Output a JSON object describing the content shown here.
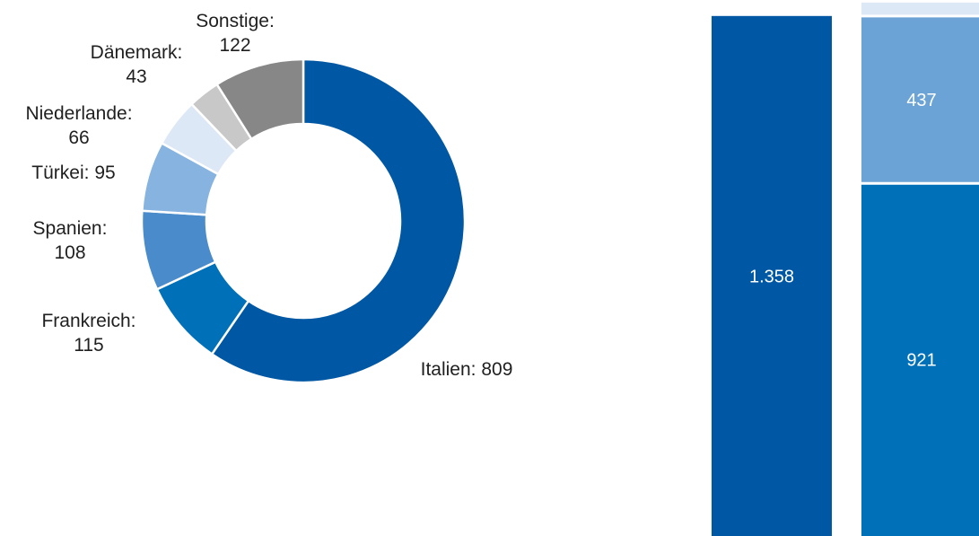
{
  "chart_data": [
    {
      "type": "pie",
      "donut": true,
      "slices": [
        {
          "label": "Italien",
          "value": 809,
          "color": "#0057A3"
        },
        {
          "label": "Frankreich",
          "value": 115,
          "color": "#0070B8"
        },
        {
          "label": "Spanien",
          "value": 108,
          "color": "#4A8CCB"
        },
        {
          "label": "Türkei",
          "value": 95,
          "color": "#86B3E0"
        },
        {
          "label": "Niederlande",
          "value": 66,
          "color": "#DDE8F6"
        },
        {
          "label": "Dänemark",
          "value": 43,
          "color": "#C8C8C8"
        },
        {
          "label": "Sonstige",
          "value": 122,
          "color": "#878787"
        }
      ]
    },
    {
      "type": "bar",
      "stacked": true,
      "bars": [
        {
          "segments": [
            {
              "value": 1358,
              "label": "1.358",
              "color": "#0057A3"
            }
          ]
        },
        {
          "segments": [
            {
              "value": 921,
              "label": "921",
              "color": "#0070B8"
            },
            {
              "value": 437,
              "label": "437",
              "color": "#6CA3D6"
            },
            {
              "value": 35,
              "label": "",
              "color": "#DDE8F6"
            }
          ]
        }
      ]
    }
  ],
  "labels": {
    "italien": {
      "name": "Italien:",
      "val": "809"
    },
    "frankreich": {
      "name": "Frankreich:",
      "val": "115"
    },
    "spanien": {
      "name": "Spanien:",
      "val": "108"
    },
    "tuerkei": {
      "name": "Türkei:",
      "val": "95"
    },
    "niederlande": {
      "name": "Niederlande:",
      "val": "66"
    },
    "daenemark": {
      "name": "Dänemark:",
      "val": "43"
    },
    "sonstige": {
      "name": "Sonstige:",
      "val": "122"
    }
  }
}
